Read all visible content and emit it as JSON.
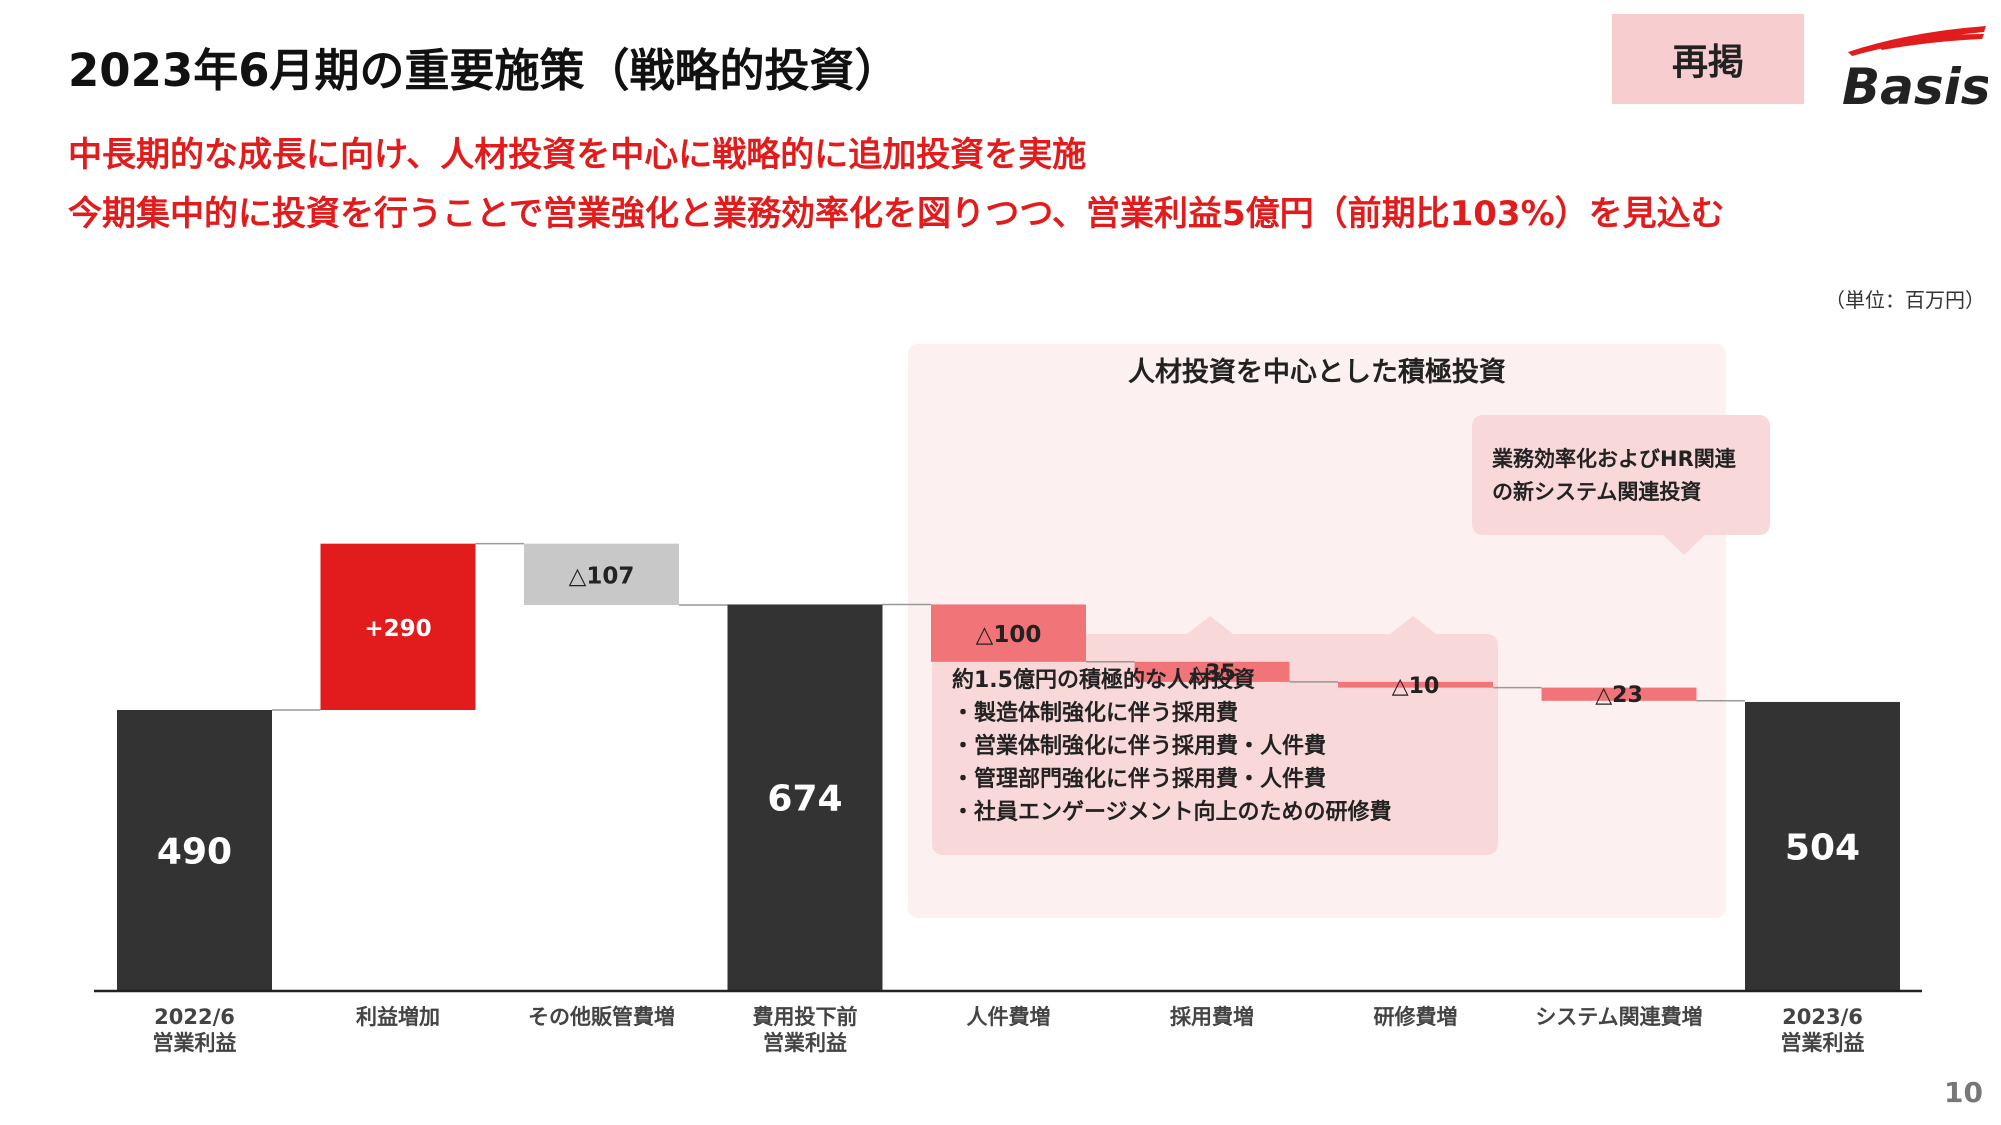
{
  "header": {
    "title": "2023年6月期の重要施策（戦略的投資）",
    "badge": "再掲",
    "logo_text": "Basis",
    "subtitle_line1": "中長期的な成長に向け、人材投資を中心に戦略的に追加投資を実施",
    "subtitle_line2": "今期集中的に投資を行うことで営業強化と業務効率化を図りつつ、営業利益5億円（前期比103%）を見込む",
    "unit": "（単位：百万円）"
  },
  "panel": {
    "title": "人材投資を中心とした積極投資",
    "hr_box": {
      "heading": "約1.5億円の積極的な人材投資",
      "items": [
        "・製造体制強化に伴う採用費",
        "・営業体制強化に伴う採用費・人件費",
        "・管理部門強化に伴う採用費・人件費",
        "・社員エンゲージメント向上のための研修費"
      ]
    },
    "system_box": {
      "line1": "業務効率化およびHR関連",
      "line2": "の新システム関連投資"
    }
  },
  "colors": {
    "total": "#333333",
    "increase": "#e21c1c",
    "decrease_gray": "#c8c8c8",
    "decrease_pink": "#f07478",
    "panel_bg": "#fdf0f0",
    "callout_bg": "#f8d8d9",
    "accent_text": "#e21c1c"
  },
  "chart_data": {
    "type": "bar",
    "subtype": "waterfall",
    "unit": "百万円",
    "categories": [
      "2022/6\n営業利益",
      "利益増加",
      "その他販管費増",
      "費用投下前\n営業利益",
      "人件費増",
      "採用費増",
      "研修費増",
      "システム関連費増",
      "2023/6\n営業利益"
    ],
    "values": [
      490,
      290,
      -107,
      674,
      -100,
      -35,
      -10,
      -23,
      504
    ],
    "kinds": [
      "total",
      "increase",
      "decrease",
      "total",
      "decrease",
      "decrease",
      "decrease",
      "decrease",
      "total"
    ],
    "data_labels": [
      "490",
      "+290",
      "△107",
      "674",
      "△100",
      "△35",
      "△10",
      "△23",
      "504"
    ],
    "ylim": [
      0,
      800
    ]
  },
  "page_number": "10"
}
